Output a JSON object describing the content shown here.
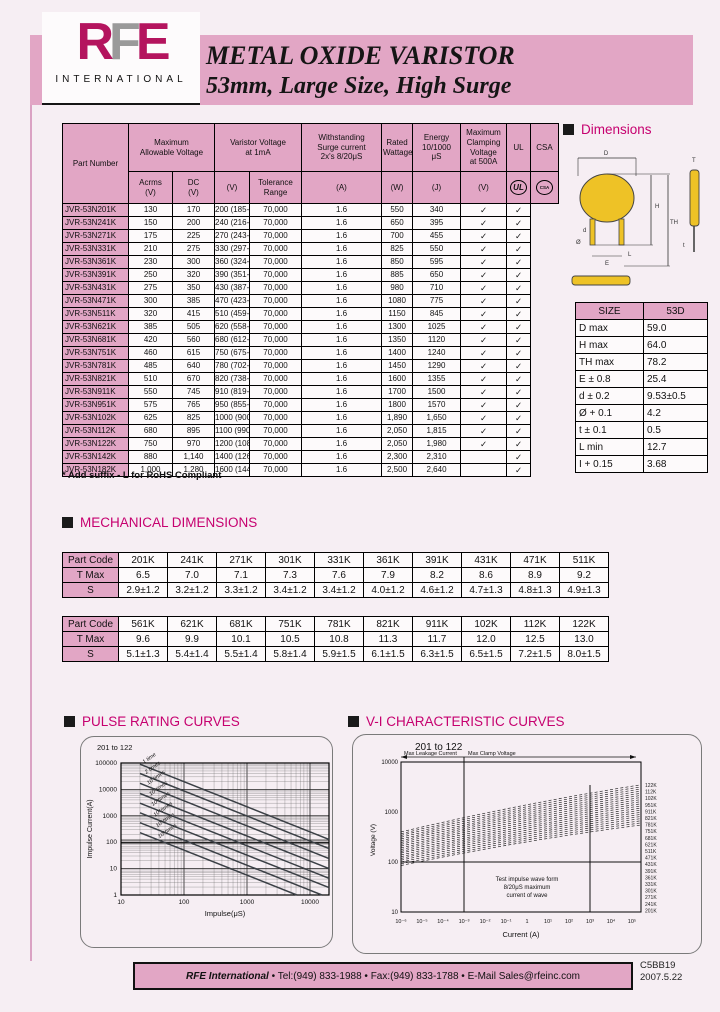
{
  "header": {
    "logo": {
      "r": "R",
      "f": "F",
      "e": "E",
      "sub": "INTERNATIONAL"
    },
    "title_line1": "METAL OXIDE VARISTOR",
    "title_line2": "53mm, Large Size, High Surge"
  },
  "ratings": {
    "group_row": [
      "Part Number",
      "Maximum\nAllowable Voltage",
      "Varistor Voltage\nat 1mA",
      "Withstanding\nSurge current\n2x's 8/20μS",
      "Rated\nWattage",
      "Energy\n10/1000\nμS",
      "Maximum\nClamping\nVoltage\nat 500A",
      "UL",
      "CSA"
    ],
    "unit_row": [
      "Acrms\n(V)",
      "DC\n(V)",
      "(V)",
      "Tolerance\nRange",
      "(A)",
      "(W)",
      "(J)",
      "(V)"
    ],
    "marks": {
      "ul": "UL",
      "csa": "CSA"
    },
    "check": "✓",
    "rows": [
      [
        "JVR-53N201K",
        "130",
        "170",
        "200 (185-225)",
        "70,000",
        "1.6",
        "550",
        "340",
        "✓",
        "✓"
      ],
      [
        "JVR-53N241K",
        "150",
        "200",
        "240 (216-264)",
        "70,000",
        "1.6",
        "650",
        "395",
        "✓",
        "✓"
      ],
      [
        "JVR-53N271K",
        "175",
        "225",
        "270 (243-297)",
        "70,000",
        "1.6",
        "700",
        "455",
        "✓",
        "✓"
      ],
      [
        "JVR-53N331K",
        "210",
        "275",
        "330 (297-363)",
        "70,000",
        "1.6",
        "825",
        "550",
        "✓",
        "✓"
      ],
      [
        "JVR-53N361K",
        "230",
        "300",
        "360 (324-396)",
        "70,000",
        "1.6",
        "850",
        "595",
        "✓",
        "✓"
      ],
      [
        "JVR-53N391K",
        "250",
        "320",
        "390 (351-429)",
        "70,000",
        "1.6",
        "885",
        "650",
        "✓",
        "✓"
      ],
      [
        "JVR-53N431K",
        "275",
        "350",
        "430 (387-473)",
        "70,000",
        "1.6",
        "980",
        "710",
        "✓",
        "✓"
      ],
      [
        "JVR-53N471K",
        "300",
        "385",
        "470 (423-517)",
        "70,000",
        "1.6",
        "1080",
        "775",
        "✓",
        "✓"
      ],
      [
        "JVR-53N511K",
        "320",
        "415",
        "510 (459-561)",
        "70,000",
        "1.6",
        "1150",
        "845",
        "✓",
        "✓"
      ],
      [
        "JVR-53N621K",
        "385",
        "505",
        "620 (558-682)",
        "70,000",
        "1.6",
        "1300",
        "1025",
        "✓",
        "✓"
      ],
      [
        "JVR-53N681K",
        "420",
        "560",
        "680 (612-748)",
        "70,000",
        "1.6",
        "1350",
        "1120",
        "✓",
        "✓"
      ],
      [
        "JVR-53N751K",
        "460",
        "615",
        "750 (675-825)",
        "70,000",
        "1.6",
        "1400",
        "1240",
        "✓",
        "✓"
      ],
      [
        "JVR-53N781K",
        "485",
        "640",
        "780 (702-858)",
        "70,000",
        "1.6",
        "1450",
        "1290",
        "✓",
        "✓"
      ],
      [
        "JVR-53N821K",
        "510",
        "670",
        "820 (738-902)",
        "70,000",
        "1.6",
        "1600",
        "1355",
        "✓",
        "✓"
      ],
      [
        "JVR-53N911K",
        "550",
        "745",
        "910 (819-1001)",
        "70,000",
        "1.6",
        "1700",
        "1500",
        "✓",
        "✓"
      ],
      [
        "JVR-53N951K",
        "575",
        "765",
        "950 (855-1045)",
        "70,000",
        "1.6",
        "1800",
        "1570",
        "✓",
        "✓"
      ],
      [
        "JVR-53N102K",
        "625",
        "825",
        "1000 (900-1100)",
        "70,000",
        "1.6",
        "1,890",
        "1,650",
        "✓",
        "✓"
      ],
      [
        "JVR-53N112K",
        "680",
        "895",
        "1100 (990-1210)",
        "70,000",
        "1.6",
        "2,050",
        "1,815",
        "✓",
        "✓"
      ],
      [
        "JVR-53N122K",
        "750",
        "970",
        "1200 (1080-1320)",
        "70,000",
        "1.6",
        "2,050",
        "1,980",
        "✓",
        "✓"
      ],
      [
        "JVR-53N142K",
        "880",
        "1,140",
        "1400 (1260-1540)",
        "70,000",
        "1.6",
        "2,300",
        "2,310",
        "",
        "✓"
      ],
      [
        "JVR-53N182K",
        "1,000",
        "1,280",
        "1600 (1440-1760)",
        "70,000",
        "1.6",
        "2,500",
        "2,640",
        "",
        "✓"
      ]
    ],
    "footnote": "* Add suffix - L for RoHS Compliant"
  },
  "dimensions": {
    "heading": "Dimensions",
    "drawing_labels": [
      "D",
      "H",
      "TH",
      "d",
      "E",
      "L",
      "Ø",
      "t",
      "T"
    ],
    "size_table": {
      "headers": [
        "SIZE",
        "53D"
      ],
      "rows": [
        [
          "D max",
          "59.0"
        ],
        [
          "H max",
          "64.0"
        ],
        [
          "TH max",
          "78.2"
        ],
        [
          "E ± 0.8",
          "25.4"
        ],
        [
          "d ± 0.2",
          "9.53±0.5"
        ],
        [
          "Ø + 0.1",
          "4.2"
        ],
        [
          "t ± 0.1",
          "0.5"
        ],
        [
          "L min",
          "12.7"
        ],
        [
          "I + 0.15",
          "3.68"
        ]
      ]
    }
  },
  "mechanical": {
    "heading": "MECHANICAL DIMENSIONS",
    "tables": [
      {
        "rows": [
          [
            "Part Code",
            "201K",
            "241K",
            "271K",
            "301K",
            "331K",
            "361K",
            "391K",
            "431K",
            "471K",
            "511K"
          ],
          [
            "T Max",
            "6.5",
            "7.0",
            "7.1",
            "7.3",
            "7.6",
            "7.9",
            "8.2",
            "8.6",
            "8.9",
            "9.2"
          ],
          [
            "S",
            "2.9±1.2",
            "3.2±1.2",
            "3.3±1.2",
            "3.4±1.2",
            "3.4±1.2",
            "4.0±1.2",
            "4.6±1.2",
            "4.7±1.3",
            "4.8±1.3",
            "4.9±1.3"
          ]
        ]
      },
      {
        "rows": [
          [
            "Part Code",
            "561K",
            "621K",
            "681K",
            "751K",
            "781K",
            "821K",
            "911K",
            "102K",
            "112K",
            "122K"
          ],
          [
            "T Max",
            "9.6",
            "9.9",
            "10.1",
            "10.5",
            "10.8",
            "11.3",
            "11.7",
            "12.0",
            "12.5",
            "13.0"
          ],
          [
            "S",
            "5.1±1.3",
            "5.4±1.4",
            "5.5±1.4",
            "5.8±1.4",
            "5.9±1.5",
            "6.1±1.5",
            "6.3±1.5",
            "6.5±1.5",
            "7.2±1.5",
            "8.0±1.5"
          ]
        ]
      }
    ]
  },
  "chart_data": [
    {
      "type": "line",
      "name": "pulse-rating-curves",
      "title": "PULSE RATING CURVES",
      "range_label": "201 to 122",
      "xlabel": "Impulse(μS)",
      "ylabel": "Impulse Current(A)",
      "x_scale": "log",
      "y_scale": "log",
      "xlim": [
        10,
        20000
      ],
      "ylim": [
        1,
        100000
      ],
      "x_ticks": [
        "10",
        "100",
        "1000",
        "10000"
      ],
      "y_ticks": [
        "1",
        "10",
        "100",
        "1000",
        "10000",
        "100000"
      ],
      "grid": true,
      "series": [
        {
          "name": "1 time",
          "x": [
            20,
            20000
          ],
          "y": [
            90000,
            128
          ]
        },
        {
          "name": "2 times",
          "x": [
            20,
            20000
          ],
          "y": [
            40000,
            57
          ]
        },
        {
          "name": "10 times",
          "x": [
            20,
            20000
          ],
          "y": [
            17000,
            24
          ]
        },
        {
          "name": "10²times",
          "x": [
            20,
            20000
          ],
          "y": [
            7000,
            10
          ]
        },
        {
          "name": "10³times",
          "x": [
            20,
            20000
          ],
          "y": [
            3000,
            4.3
          ]
        },
        {
          "name": "10⁴times",
          "x": [
            20,
            20000
          ],
          "y": [
            1300,
            1.9
          ]
        },
        {
          "name": "10⁵times",
          "x": [
            20,
            15500
          ],
          "y": [
            550,
            1
          ]
        },
        {
          "name": "10⁶times",
          "x": [
            20,
            6200
          ],
          "y": [
            230,
            1
          ]
        }
      ]
    },
    {
      "type": "line",
      "name": "v-i-characteristic-curves",
      "title": "V-I CHARACTERISTIC CURVES",
      "range_label": "201 to 122",
      "xlabel": "Current (A)",
      "ylabel": "Voltage (V)",
      "x_scale": "log",
      "y_scale": "log",
      "x_ticks": [
        "10⁻⁶",
        "10⁻⁵",
        "10⁻⁴",
        "10⁻³",
        "10⁻²",
        "10⁻¹",
        "1",
        "10¹",
        "10²",
        "10³",
        "10⁴",
        "10⁵"
      ],
      "y_ticks": [
        "10",
        "100",
        "1000",
        "10000"
      ],
      "annotations": {
        "left_arrow_label": "Max Leakage Current",
        "right_arrow_label": "Max Clamp Voltage",
        "note_lines": [
          "Test impulse wave form",
          "8/20μS maximum",
          "current of wave"
        ]
      },
      "band": {
        "curve_count": 20,
        "style": "dashed",
        "voltage_at_min_current": [
          85,
          400
        ],
        "voltage_at_max_current": [
          550,
          3500
        ]
      },
      "part_labels": [
        "122K",
        "112K",
        "102K",
        "951K",
        "911K",
        "821K",
        "781K",
        "751K",
        "681K",
        "621K",
        "511K",
        "471K",
        "431K",
        "391K",
        "361K",
        "331K",
        "301K",
        "271K",
        "241K",
        "201K"
      ]
    }
  ],
  "footer": {
    "brand": "RFE International",
    "contact": " • Tel:(949) 833-1988 • Fax:(949) 833-1788 • E-Mail Sales@rfeinc.com",
    "doc_code": "C5BB19",
    "doc_date": "2007.5.22"
  },
  "colors": {
    "pink": "#e2a6c5",
    "magenta_heading": "#c6006f",
    "logo_magenta": "#b4145e",
    "logo_gray": "#9a9a9a",
    "disc_yellow": "#eec226"
  }
}
